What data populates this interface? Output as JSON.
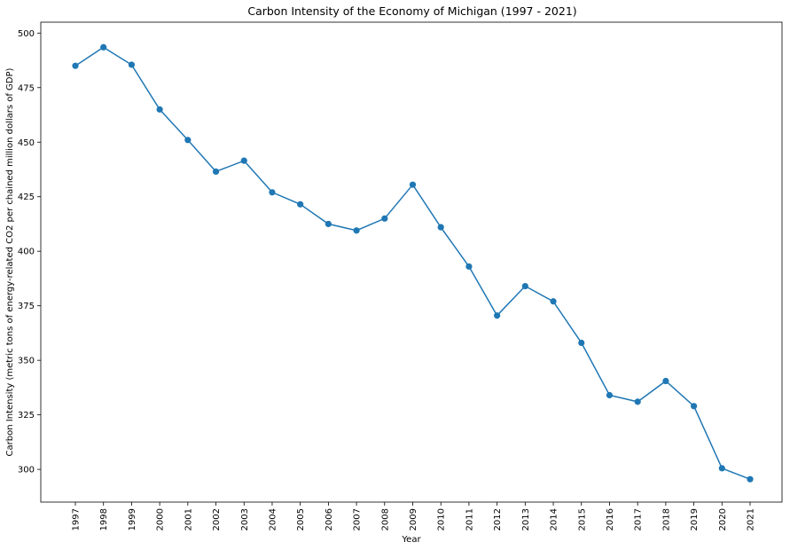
{
  "chart_data": {
    "type": "line",
    "title": "Carbon Intensity of the Economy of Michigan (1997 - 2021)",
    "xlabel": "Year",
    "ylabel": "Carbon Intensity (metric tons of energy-related CO2 per chained million dollars of GDP)",
    "x": [
      "1997",
      "1998",
      "1999",
      "2000",
      "2001",
      "2002",
      "2003",
      "2004",
      "2005",
      "2006",
      "2007",
      "2008",
      "2009",
      "2010",
      "2011",
      "2012",
      "2013",
      "2014",
      "2015",
      "2016",
      "2017",
      "2018",
      "2019",
      "2020",
      "2021"
    ],
    "values": [
      485,
      493.5,
      485.5,
      465,
      451,
      436.5,
      441.5,
      427,
      421.5,
      412.5,
      409.5,
      415,
      430.5,
      411,
      393,
      370.5,
      384,
      377,
      358,
      334,
      331,
      340.5,
      329,
      300.5,
      295.5
    ],
    "ylim": [
      285,
      505
    ],
    "yticks": [
      300,
      325,
      350,
      375,
      400,
      425,
      450,
      475,
      500
    ],
    "grid": false,
    "marker": "circle",
    "color": "#1f77b4"
  }
}
